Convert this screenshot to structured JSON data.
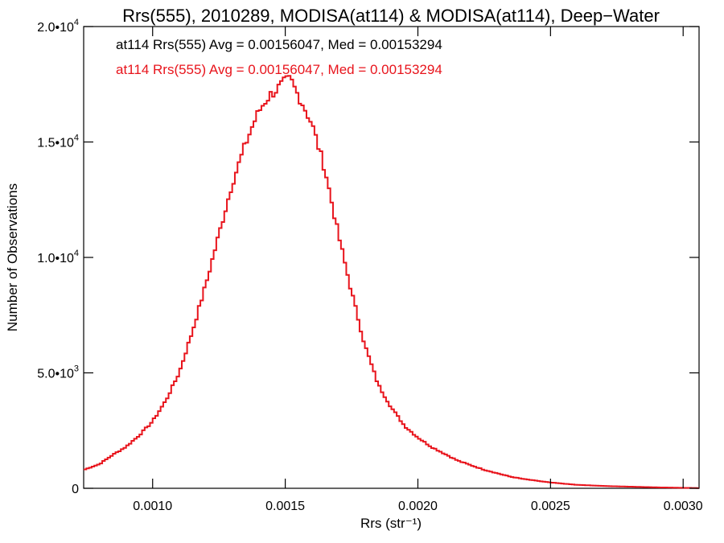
{
  "chart_data": {
    "type": "line",
    "title": "Rrs(555), 2010289, MODISA(at114) & MODISA(at114), Deep−Water",
    "xlabel": "Rrs (str⁻¹)",
    "ylabel": "Number of Observations",
    "xlim": [
      0.00074,
      0.00306
    ],
    "ylim": [
      0,
      20000
    ],
    "x_ticks": [
      {
        "value": 0.001,
        "label": "0.0010"
      },
      {
        "value": 0.0015,
        "label": "0.0015"
      },
      {
        "value": 0.002,
        "label": "0.0020"
      },
      {
        "value": 0.0025,
        "label": "0.0025"
      },
      {
        "value": 0.003,
        "label": "0.0030"
      }
    ],
    "y_ticks": [
      {
        "value": 0,
        "mant": "0",
        "exp": ""
      },
      {
        "value": 5000,
        "mant": "5.0•10",
        "exp": "3"
      },
      {
        "value": 10000,
        "mant": "1.0•10",
        "exp": "4"
      },
      {
        "value": 15000,
        "mant": "1.5•10",
        "exp": "4"
      },
      {
        "value": 20000,
        "mant": "2.0•10",
        "exp": "4"
      }
    ],
    "grid": false,
    "annotations": [
      {
        "text": "at114 Rrs(555) Avg = 0.00156047, Med = 0.00153294",
        "color": "#000000"
      },
      {
        "text": "at114 Rrs(555) Avg = 0.00156047, Med = 0.00153294",
        "color": "#e8141c"
      }
    ],
    "series": [
      {
        "color": "#e8141c",
        "step": true,
        "x": [
          0.00074,
          0.0008,
          0.00085,
          0.0009,
          0.00095,
          0.001,
          0.00105,
          0.0011,
          0.00115,
          0.0012,
          0.00125,
          0.0013,
          0.00135,
          0.00138,
          0.0014,
          0.00142,
          0.00144,
          0.00146,
          0.00148,
          0.0015,
          0.00152,
          0.00154,
          0.00156,
          0.00158,
          0.0016,
          0.00165,
          0.0017,
          0.00175,
          0.0018,
          0.00185,
          0.0019,
          0.00195,
          0.002,
          0.00205,
          0.0021,
          0.00215,
          0.0022,
          0.00225,
          0.0023,
          0.00235,
          0.0024,
          0.0025,
          0.0026,
          0.0027,
          0.0028,
          0.0029,
          0.003,
          0.00306
        ],
        "y": [
          800,
          1050,
          1450,
          1800,
          2300,
          2900,
          3800,
          5000,
          6800,
          8800,
          11000,
          13200,
          14900,
          15800,
          16300,
          16700,
          17000,
          17200,
          17400,
          17600,
          17700,
          17200,
          16800,
          16300,
          15800,
          13800,
          11000,
          8500,
          6200,
          4500,
          3500,
          2700,
          2200,
          1800,
          1500,
          1200,
          1000,
          800,
          650,
          500,
          400,
          250,
          150,
          100,
          70,
          40,
          20,
          10
        ]
      }
    ]
  }
}
